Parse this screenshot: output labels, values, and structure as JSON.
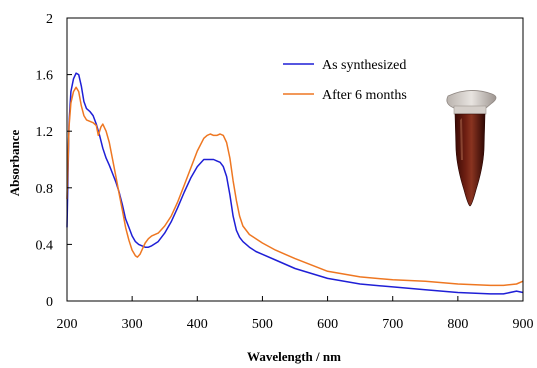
{
  "chart_data": {
    "type": "line",
    "xlabel": "Wavelength / nm",
    "ylabel": "Absorbance",
    "xlim": [
      200,
      900
    ],
    "ylim": [
      0,
      2
    ],
    "xticks": [
      "200",
      "300",
      "400",
      "500",
      "600",
      "700",
      "800",
      "900"
    ],
    "yticks": [
      "0",
      "0.4",
      "0.8",
      "1.2",
      "1.6",
      "2"
    ],
    "grid": false,
    "legend_position": "top-right",
    "series": [
      {
        "name": "As synthesized",
        "color": "#1f1fd6",
        "x": [
          200,
          203,
          206,
          210,
          214,
          218,
          222,
          226,
          230,
          235,
          240,
          245,
          250,
          255,
          260,
          265,
          270,
          275,
          280,
          285,
          290,
          295,
          300,
          305,
          310,
          315,
          320,
          325,
          330,
          340,
          350,
          360,
          370,
          380,
          390,
          400,
          410,
          415,
          420,
          425,
          430,
          435,
          440,
          445,
          450,
          455,
          460,
          465,
          470,
          480,
          490,
          500,
          520,
          550,
          600,
          650,
          700,
          750,
          800,
          850,
          870,
          890,
          900
        ],
        "y": [
          0.52,
          1.25,
          1.48,
          1.57,
          1.61,
          1.6,
          1.52,
          1.41,
          1.36,
          1.34,
          1.31,
          1.25,
          1.17,
          1.08,
          1.01,
          0.96,
          0.9,
          0.84,
          0.77,
          0.68,
          0.58,
          0.52,
          0.46,
          0.42,
          0.4,
          0.39,
          0.38,
          0.38,
          0.39,
          0.42,
          0.48,
          0.56,
          0.66,
          0.77,
          0.87,
          0.95,
          1.0,
          1.0,
          1.0,
          1.0,
          0.99,
          0.98,
          0.95,
          0.88,
          0.75,
          0.6,
          0.5,
          0.45,
          0.42,
          0.38,
          0.35,
          0.33,
          0.29,
          0.23,
          0.16,
          0.12,
          0.1,
          0.08,
          0.06,
          0.05,
          0.05,
          0.07,
          0.06
        ]
      },
      {
        "name": "After 6 months",
        "color": "#ee7722",
        "x": [
          200,
          203,
          206,
          210,
          214,
          218,
          222,
          226,
          230,
          235,
          240,
          245,
          248,
          250,
          252,
          255,
          260,
          265,
          270,
          275,
          280,
          285,
          290,
          295,
          300,
          305,
          308,
          312,
          316,
          320,
          325,
          330,
          340,
          350,
          360,
          370,
          380,
          390,
          400,
          410,
          415,
          420,
          425,
          430,
          435,
          440,
          445,
          450,
          455,
          460,
          465,
          470,
          480,
          490,
          500,
          520,
          550,
          600,
          650,
          700,
          750,
          800,
          850,
          870,
          890,
          900
        ],
        "y": [
          0.72,
          1.23,
          1.4,
          1.48,
          1.51,
          1.48,
          1.38,
          1.31,
          1.28,
          1.27,
          1.26,
          1.24,
          1.17,
          1.2,
          1.23,
          1.25,
          1.2,
          1.12,
          1.0,
          0.88,
          0.76,
          0.64,
          0.52,
          0.43,
          0.36,
          0.32,
          0.31,
          0.33,
          0.37,
          0.41,
          0.44,
          0.46,
          0.48,
          0.53,
          0.6,
          0.7,
          0.82,
          0.94,
          1.06,
          1.15,
          1.17,
          1.18,
          1.17,
          1.17,
          1.18,
          1.17,
          1.12,
          1.01,
          0.85,
          0.71,
          0.6,
          0.53,
          0.47,
          0.44,
          0.41,
          0.36,
          0.3,
          0.21,
          0.17,
          0.15,
          0.14,
          0.12,
          0.11,
          0.11,
          0.12,
          0.14
        ]
      }
    ]
  }
}
